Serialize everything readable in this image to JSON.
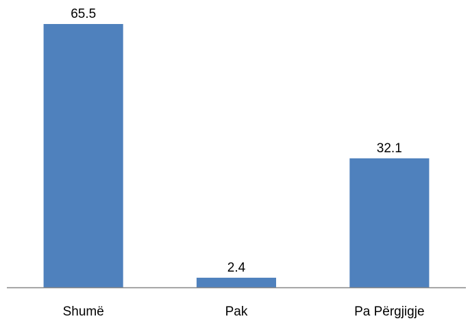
{
  "chart_data": {
    "type": "bar",
    "categories": [
      "Shumë",
      "Pak",
      "Pa Përgjigje"
    ],
    "values": [
      65.5,
      2.4,
      32.1
    ],
    "data_labels": [
      "65.5",
      "2.4",
      "32.1"
    ],
    "title": "",
    "xlabel": "",
    "ylabel": "",
    "ylim": [
      0,
      70
    ],
    "grid": false,
    "legend": "none",
    "colors": {
      "bar": "#4f81bd",
      "axis": "#868686",
      "text": "#000000"
    }
  }
}
